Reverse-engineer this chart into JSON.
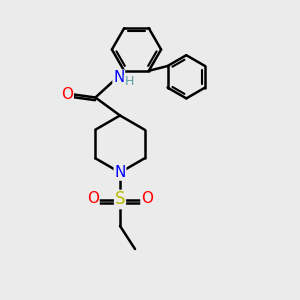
{
  "background_color": "#ebebeb",
  "bond_color": "#000000",
  "bond_width": 1.8,
  "atom_colors": {
    "N": "#0000ff",
    "O": "#ff0000",
    "S": "#bbbb00",
    "H": "#5f9ea0",
    "C": "#000000"
  },
  "font_size": 10,
  "figsize": [
    3.0,
    3.0
  ],
  "dpi": 100
}
